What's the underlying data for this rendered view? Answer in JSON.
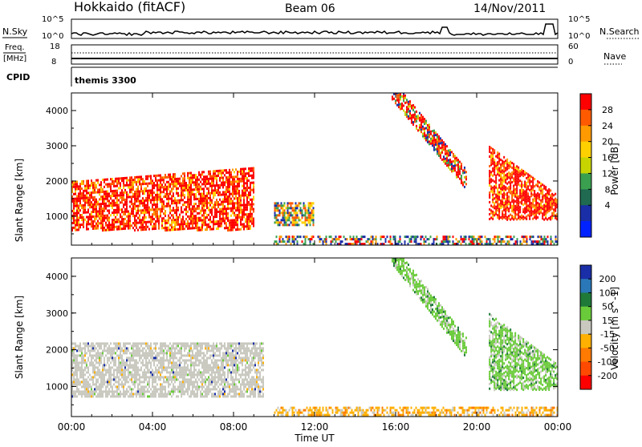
{
  "header": {
    "station": "Hokkaido (fitACF)",
    "beam": "Beam 06",
    "date": "14/Nov/2011"
  },
  "status_panels": {
    "nsky_label": "N.Sky",
    "nsky_ticks": [
      "10^5",
      "10^0"
    ],
    "nsearch_label": "N.Search",
    "nsearch_ticks": [
      "10^5",
      "10^0"
    ],
    "freq_label": "Freq.",
    "freq_unit": "[MHz]",
    "freq_ticks": [
      "18",
      "8"
    ],
    "nave_label": "Nave",
    "nave_ticks": [
      "60",
      "0"
    ],
    "cpid_label": "CPID",
    "cpid_value": "themis 3300"
  },
  "chart_data": [
    {
      "type": "heatmap",
      "title": "Power",
      "ylabel": "Slant Range [km]",
      "ylim": [
        180,
        4500
      ],
      "yticks": [
        "4000",
        "3000",
        "2000",
        "1000"
      ],
      "xlim": [
        0,
        24
      ],
      "colorbar": {
        "label": "Power [dB]",
        "ticks": [
          "28",
          "24",
          "20",
          "16",
          "12",
          "8",
          "4"
        ],
        "colors": [
          "#ff0000",
          "#ff5a00",
          "#ff9a00",
          "#ffd000",
          "#c8d400",
          "#3aa050",
          "#1f6a50",
          "#1a2ea8",
          "#0022ff"
        ]
      },
      "features": [
        {
          "name": "afternoon-band",
          "t": [
            0.0,
            9.0
          ],
          "r": [
            700,
            2000
          ],
          "level": "28"
        },
        {
          "name": "late-band",
          "t": [
            10.0,
            12.0
          ],
          "r": [
            700,
            1400
          ],
          "level": "20"
        },
        {
          "name": "dawn-arc",
          "t": [
            15.8,
            19.5
          ],
          "r": [
            1700,
            4300
          ],
          "level": "24"
        },
        {
          "name": "evening-arc",
          "t": [
            20.6,
            24.0
          ],
          "r": [
            700,
            3000
          ],
          "level": "28"
        },
        {
          "name": "ground-scatter-strip",
          "t": [
            10.0,
            24.0
          ],
          "r": [
            200,
            450
          ],
          "level": "8"
        }
      ]
    },
    {
      "type": "heatmap",
      "title": "Velocity",
      "ylabel": "Slant Range [km]",
      "ylim": [
        180,
        4500
      ],
      "yticks": [
        "4000",
        "3000",
        "2000",
        "1000"
      ],
      "xlim": [
        0,
        24
      ],
      "colorbar": {
        "label": "Velocity [m s^-1]",
        "ticks": [
          "200",
          "100",
          "50",
          "15",
          "-15",
          "-50",
          "-100",
          "-200"
        ],
        "colors": [
          "#1a2ea8",
          "#2a78b8",
          "#1f7a3a",
          "#6acb3a",
          "#c9c9c0",
          "#ffb000",
          "#ff7a00",
          "#ff4a00",
          "#ff0000"
        ]
      },
      "features": [
        {
          "name": "ground-scatter-band",
          "t": [
            0.0,
            9.5
          ],
          "r": [
            700,
            2200
          ],
          "level": "-15..15"
        },
        {
          "name": "dawn-arc",
          "t": [
            15.8,
            19.5
          ],
          "r": [
            1700,
            4300
          ],
          "level": "15..50"
        },
        {
          "name": "evening-arc",
          "t": [
            20.6,
            24.0
          ],
          "r": [
            700,
            3000
          ],
          "level": "15..50"
        },
        {
          "name": "ground-scatter-strip",
          "t": [
            10.0,
            24.0
          ],
          "r": [
            200,
            450
          ],
          "level": "-50..-15"
        }
      ]
    }
  ],
  "xaxis": {
    "ticks": [
      "00:00",
      "04:00",
      "08:00",
      "12:00",
      "16:00",
      "20:00",
      "00:00"
    ],
    "label": "Time UT"
  }
}
